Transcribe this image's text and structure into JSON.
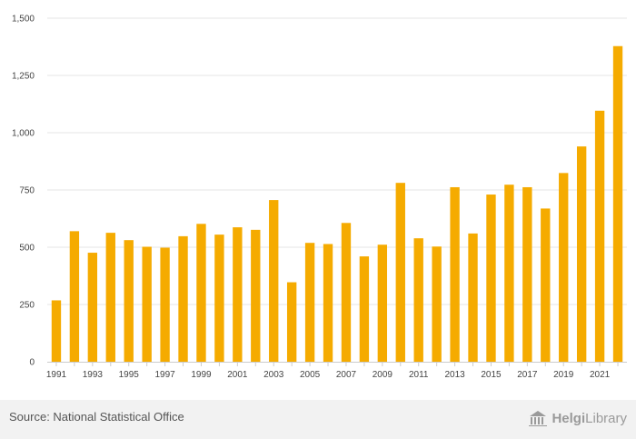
{
  "chart_data": {
    "type": "bar",
    "title": "",
    "xlabel": "",
    "ylabel": "",
    "ylim": [
      0,
      1500
    ],
    "yticks": [
      "0",
      "250",
      "500",
      "750",
      "1,000",
      "1,250",
      "1,500"
    ],
    "ytick_values": [
      0,
      250,
      500,
      750,
      1000,
      1250,
      1500
    ],
    "categories": [
      "1991",
      "1992",
      "1993",
      "1994",
      "1995",
      "1996",
      "1997",
      "1998",
      "1999",
      "2000",
      "2001",
      "2002",
      "2003",
      "2004",
      "2005",
      "2006",
      "2007",
      "2008",
      "2009",
      "2010",
      "2011",
      "2012",
      "2013",
      "2014",
      "2015",
      "2016",
      "2017",
      "2018",
      "2019",
      "2020",
      "2021",
      "2022"
    ],
    "values": [
      268,
      570,
      476,
      563,
      531,
      502,
      498,
      548,
      602,
      555,
      587,
      576,
      706,
      347,
      519,
      514,
      606,
      460,
      511,
      781,
      539,
      503,
      762,
      560,
      730,
      773,
      762,
      669,
      824,
      940,
      1096,
      1378
    ],
    "xtick_labels": [
      "1991",
      "1993",
      "1995",
      "1997",
      "1999",
      "2001",
      "2003",
      "2005",
      "2007",
      "2009",
      "2011",
      "2013",
      "2015",
      "2017",
      "2019",
      "2021"
    ],
    "bar_color": "#f5ab00",
    "grid": true
  },
  "footer": {
    "source": "Source: National Statistical Office",
    "brand": "HelgiLibrary",
    "brand_main": "Helgi",
    "brand_suffix": "Library"
  }
}
